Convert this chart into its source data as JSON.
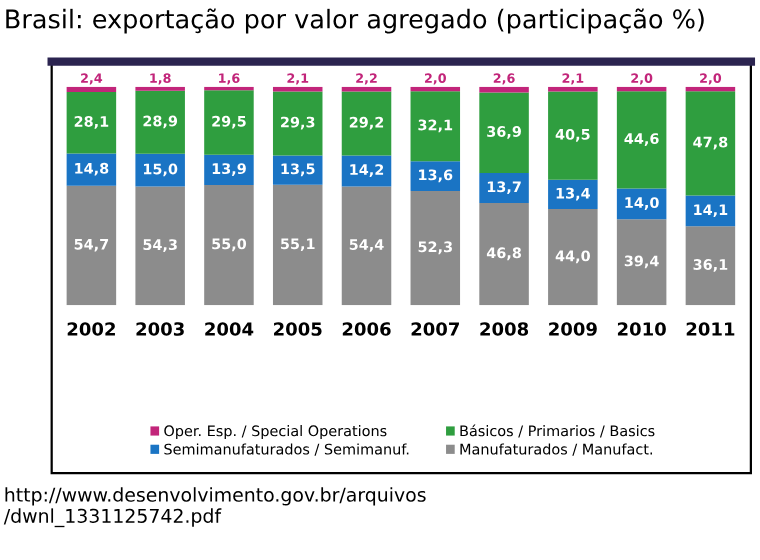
{
  "chart_data": {
    "type": "bar",
    "stacked": true,
    "title": "Brasil: exportação por valor agregado (participação %)",
    "categories": [
      "2002",
      "2003",
      "2004",
      "2005",
      "2006",
      "2007",
      "2008",
      "2009",
      "2010",
      "2011"
    ],
    "series": [
      {
        "name": "Manufaturados / Manufact.",
        "color": "#8c8c8c",
        "values": [
          54.7,
          54.3,
          55.0,
          55.1,
          54.4,
          52.3,
          46.8,
          44.0,
          39.4,
          36.1
        ],
        "value_labels": [
          "54,7",
          "54,3",
          "55,0",
          "55,1",
          "54,4",
          "52,3",
          "46,8",
          "44,0",
          "39,4",
          "36,1"
        ]
      },
      {
        "name": "Semimanufaturados / Semimanuf.",
        "color": "#1a74c4",
        "values": [
          14.8,
          15.0,
          13.9,
          13.5,
          14.2,
          13.6,
          13.7,
          13.4,
          14.0,
          14.1
        ],
        "value_labels": [
          "14,8",
          "15,0",
          "13,9",
          "13,5",
          "14,2",
          "13,6",
          "13,7",
          "13,4",
          "14,0",
          "14,1"
        ]
      },
      {
        "name": "Básicos / Primarios / Basics",
        "color": "#2f9e3f",
        "values": [
          28.1,
          28.9,
          29.5,
          29.3,
          29.2,
          32.1,
          36.9,
          40.5,
          44.6,
          47.8
        ],
        "value_labels": [
          "28,1",
          "28,9",
          "29,5",
          "29,3",
          "29,2",
          "32,1",
          "36,9",
          "40,5",
          "44,6",
          "47,8"
        ]
      },
      {
        "name": "Oper. Esp. / Special Operations",
        "color": "#c2257a",
        "values": [
          2.4,
          1.8,
          1.6,
          2.1,
          2.2,
          2.0,
          2.6,
          2.1,
          2.0,
          2.0
        ],
        "value_labels": [
          "2,4",
          "1,8",
          "1,6",
          "2,1",
          "2,2",
          "2,0",
          "2,6",
          "2,1",
          "2,0",
          "2,0"
        ]
      }
    ],
    "tick_labels": "x",
    "grid": false,
    "legend": "bottom",
    "annotations": [
      "http://www.desenvolvimento.gov.br/arquivos\n/dwnl_1331125742.pdf"
    ]
  }
}
